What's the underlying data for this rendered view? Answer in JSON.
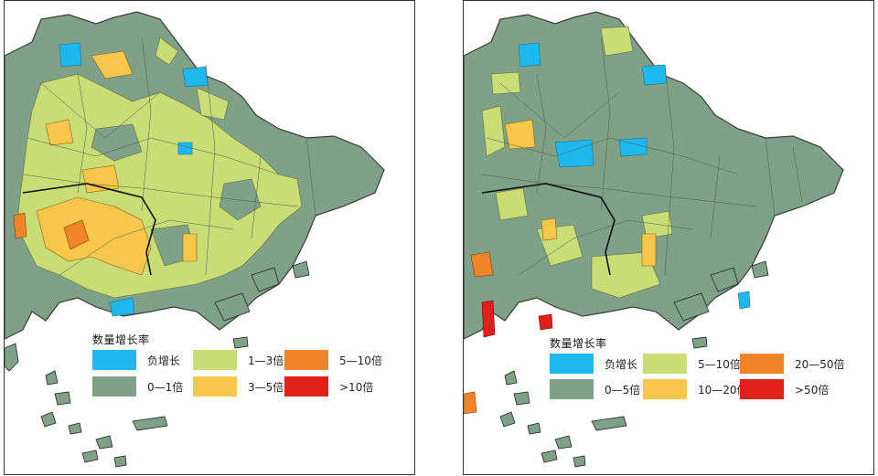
{
  "colors": {
    "water_negative": "#1fb8ee",
    "low": "#7fa188",
    "mid": "#c9dc76",
    "high": "#f7c64a",
    "very_high": "#f0842a",
    "extreme": "#e0201a",
    "boundary": "#3a3a3a"
  },
  "maps": [
    {
      "legend": {
        "title": "数量增长率",
        "items": [
          {
            "label": "负增长",
            "color": "#1fb8ee"
          },
          {
            "label": "1—3倍",
            "color": "#c9dc76"
          },
          {
            "label": "5—10倍",
            "color": "#f0842a"
          },
          {
            "label": "0—1倍",
            "color": "#7fa188"
          },
          {
            "label": "3—5倍",
            "color": "#f7c64a"
          },
          {
            "label": ">10倍",
            "color": "#e0201a"
          }
        ]
      }
    },
    {
      "legend": {
        "title": "数量增长率",
        "items": [
          {
            "label": "负增长",
            "color": "#1fb8ee"
          },
          {
            "label": "5—10倍",
            "color": "#c9dc76"
          },
          {
            "label": "20—50倍",
            "color": "#f0842a"
          },
          {
            "label": "0—5倍",
            "color": "#7fa188"
          },
          {
            "label": "10—20倍",
            "color": "#f7c64a"
          },
          {
            "label": ">50倍",
            "color": "#e0201a"
          }
        ]
      }
    }
  ]
}
